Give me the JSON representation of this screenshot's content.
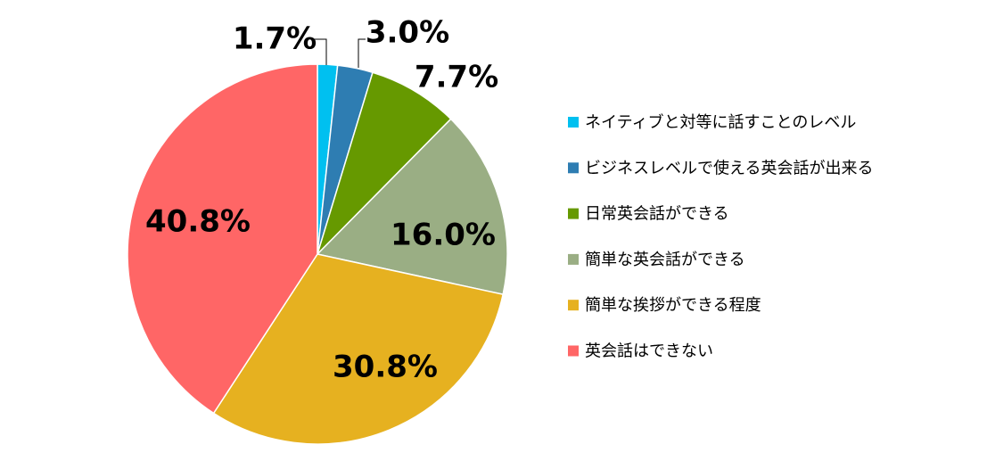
{
  "chart_data": {
    "type": "pie",
    "categories": [
      "ネイティブと対等に話すことのレベル",
      "ビジネスレベルで使える英会話が出来る",
      "日常英会話ができる",
      "簡単な英会話ができる",
      "簡単な挨拶ができる程度",
      "英会話はできない"
    ],
    "values": [
      1.7,
      3.0,
      7.7,
      16.0,
      30.8,
      40.8
    ],
    "value_labels": [
      "1.7%",
      "3.0%",
      "7.7%",
      "16.0%",
      "30.8%",
      "40.8%"
    ],
    "colors": [
      "#00c0f0",
      "#2e7db2",
      "#669900",
      "#9aae84",
      "#e6b120",
      "#ff6666"
    ],
    "legend": "right"
  }
}
